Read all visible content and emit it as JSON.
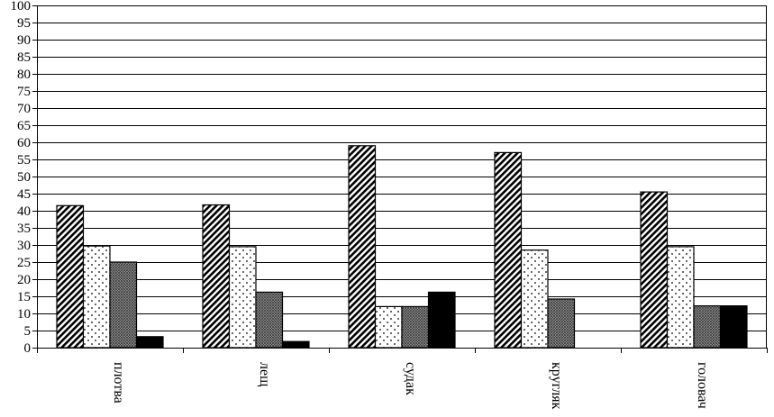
{
  "chart_data": {
    "type": "bar",
    "categories": [
      "плотва",
      "лещ",
      "судак",
      "кругляк",
      "головач"
    ],
    "series": [
      {
        "pattern": "diagonal-hatch",
        "values": [
          41.5,
          41.7,
          59.0,
          57.0,
          45.5
        ]
      },
      {
        "pattern": "dots",
        "values": [
          29.7,
          29.5,
          12.0,
          28.5,
          29.5
        ]
      },
      {
        "pattern": "crosshatch-gray",
        "values": [
          25.0,
          16.2,
          12.0,
          14.2,
          12.2
        ]
      },
      {
        "pattern": "solid-black",
        "values": [
          3.2,
          1.8,
          16.2,
          0,
          12.2
        ]
      }
    ],
    "ylim": [
      0,
      100
    ],
    "yticks": [
      0,
      5,
      10,
      15,
      20,
      25,
      30,
      35,
      40,
      45,
      50,
      55,
      60,
      65,
      70,
      75,
      80,
      85,
      90,
      95,
      100
    ],
    "grid": true,
    "legend": "none",
    "colors": {
      "background": "#ffffff",
      "axis": "#000000",
      "grid": "#000000",
      "solid": "#000000",
      "gray": "#9a9a9a"
    }
  }
}
